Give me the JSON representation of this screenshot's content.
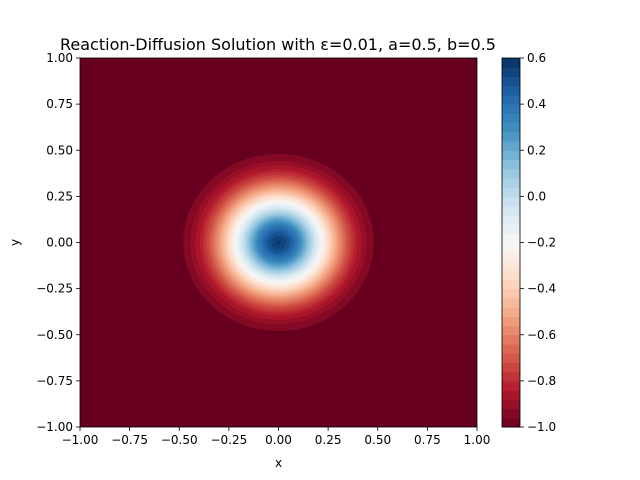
{
  "chart_data": {
    "type": "heatmap",
    "plot_style": "filled-contour",
    "title": "Reaction-Diffusion Solution with ε=0.01, a=0.5, b=0.5",
    "xlabel": "x",
    "ylabel": "y",
    "xlim": [
      -1.0,
      1.0
    ],
    "ylim": [
      -1.0,
      1.0
    ],
    "x_ticks": [
      "−1.00",
      "−0.75",
      "−0.50",
      "−0.25",
      "0.00",
      "0.25",
      "0.50",
      "0.75",
      "1.00"
    ],
    "y_ticks": [
      "−1.00",
      "−0.75",
      "−0.50",
      "−0.25",
      "0.00",
      "0.25",
      "0.50",
      "0.75",
      "1.00"
    ],
    "x_tick_values": [
      -1.0,
      -0.75,
      -0.5,
      -0.25,
      0.0,
      0.25,
      0.5,
      0.75,
      1.0
    ],
    "y_tick_values": [
      -1.0,
      -0.75,
      -0.5,
      -0.25,
      0.0,
      0.25,
      0.5,
      0.75,
      1.0
    ],
    "colormap": "RdBu",
    "field": {
      "shape": "radially symmetric bump centered at (0, 0)",
      "center": [
        0.0,
        0.0
      ],
      "radial_profile_r": [
        0.0,
        0.05,
        0.1,
        0.15,
        0.2,
        0.25,
        0.3,
        0.35,
        0.4,
        0.45,
        0.5,
        1.42
      ],
      "radial_profile_u": [
        0.58,
        0.5,
        0.35,
        0.12,
        -0.12,
        -0.35,
        -0.55,
        -0.72,
        -0.85,
        -0.93,
        -0.98,
        -1.0
      ]
    },
    "colorbar": {
      "range": [
        -1.0,
        0.6
      ],
      "ticks": [
        "−1.0",
        "−0.8",
        "−0.6",
        "−0.4",
        "−0.2",
        "0.0",
        "0.2",
        "0.4",
        "0.6"
      ],
      "tick_values": [
        -1.0,
        -0.8,
        -0.6,
        -0.4,
        -0.2,
        0.0,
        0.2,
        0.4,
        0.6
      ],
      "levels": 40
    },
    "grid": false,
    "legend": "none"
  }
}
